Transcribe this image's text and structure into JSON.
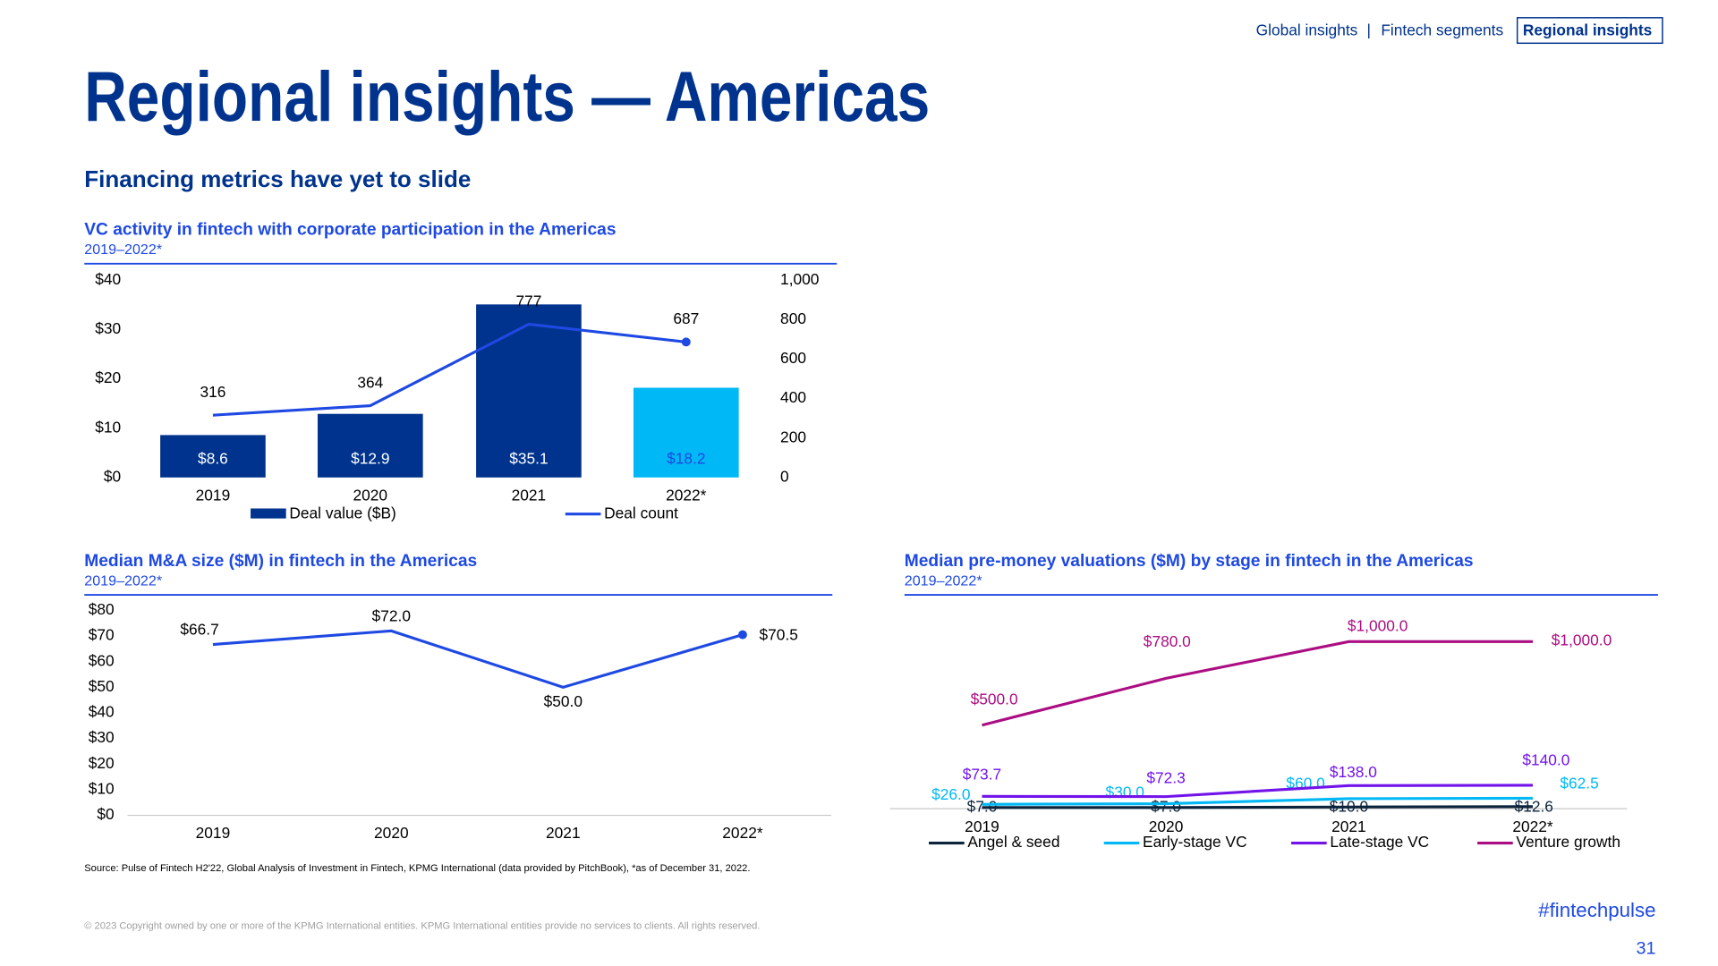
{
  "nav": [
    "Global insights",
    "Fintech segments",
    "Regional insights"
  ],
  "nav_separator": "|",
  "title": "Regional insights — Americas",
  "subtitle": "Financing metrics have yet to slide",
  "source": "Source: Pulse of Fintech H2'22, Global Analysis of Investment in Fintech, KPMG International (data provided by PitchBook), *as of December 31, 2022.",
  "copyright": "© 2023 Copyright owned by one or more of the KPMG International entities. KPMG International entities provide no services to clients. All rights reserved.",
  "hashtag": "#fintechpulse",
  "page_number": 31,
  "chart_data": [
    {
      "type": "combo",
      "title": "VC activity in fintech with corporate participation in the Americas",
      "subtitle": "2019–2022*",
      "categories": [
        "2019",
        "2020",
        "2021",
        "2022*"
      ],
      "series": [
        {
          "name": "Deal value ($B)",
          "type": "bar",
          "color": "#00338D",
          "colors": [
            "#00338D",
            "#00338D",
            "#00338D",
            "#00B8F5"
          ],
          "values": [
            8.6,
            12.9,
            35.1,
            18.2
          ],
          "value_labels": [
            "$8.6",
            "$12.9",
            "$35.1",
            "$18.2"
          ],
          "value_label_colors": [
            "#ffffff",
            "#ffffff",
            "#ffffff",
            "#1E49E2"
          ]
        },
        {
          "name": "Deal count",
          "type": "line",
          "axis": "y2",
          "color": "#1E49E2",
          "values": [
            316,
            364,
            777,
            687
          ],
          "end_marker": true
        }
      ],
      "ylim": [
        0,
        40
      ],
      "yticks": [
        {
          "value": 0,
          "label": "$0"
        },
        {
          "value": 10,
          "label": "$10"
        },
        {
          "value": 20,
          "label": "$20"
        },
        {
          "value": 30,
          "label": "$30"
        },
        {
          "value": 40,
          "label": "$40"
        }
      ],
      "y2lim": [
        0,
        1000
      ],
      "y2ticks": [
        0,
        200,
        400,
        600,
        800,
        {
          "value": 1000,
          "label": "1,000"
        }
      ]
    },
    {
      "type": "line",
      "title": "Median M&A size ($M) in fintech in the Americas",
      "subtitle": "2019–2022*",
      "categories": [
        "2019",
        "2020",
        "2021",
        "2022*"
      ],
      "values": [
        66.7,
        72.0,
        50.0,
        70.5
      ],
      "value_labels": [
        "$66.7",
        "$72.0",
        "$50.0",
        "$70.5"
      ],
      "color": "#1E49E2",
      "end_marker": true,
      "ylim": [
        0,
        80
      ],
      "yticks": [
        {
          "value": 0,
          "label": "$0"
        },
        {
          "value": 10,
          "label": "$10"
        },
        {
          "value": 20,
          "label": "$20"
        },
        {
          "value": 30,
          "label": "$30"
        },
        {
          "value": 40,
          "label": "$40"
        },
        {
          "value": 50,
          "label": "$50"
        },
        {
          "value": 60,
          "label": "$60"
        },
        {
          "value": 70,
          "label": "$70"
        },
        {
          "value": 80,
          "label": "$80"
        }
      ]
    },
    {
      "type": "line",
      "title": "Median pre-money valuations ($M) by stage in fintech in the Americas",
      "subtitle": "2019–2022*",
      "categories": [
        "2019",
        "2020",
        "2021",
        "2022*"
      ],
      "series": [
        {
          "name": "Angel & seed",
          "color": "#0C233C",
          "values": [
            7.0,
            7.0,
            10.0,
            12.6
          ],
          "value_labels": [
            "$7.0",
            "$7.0",
            "$10.0",
            "$12.6"
          ]
        },
        {
          "name": "Early-stage VC",
          "color": "#00B8F5",
          "values": [
            26.0,
            30.0,
            60.0,
            62.5
          ],
          "value_labels": [
            "$26.0",
            "$30.0",
            "$60.0",
            "$62.5"
          ]
        },
        {
          "name": "Late-stage VC",
          "color": "#7213EA",
          "values": [
            73.7,
            72.3,
            138.0,
            140.0
          ],
          "value_labels": [
            "$73.7",
            "$72.3",
            "$138.0",
            "$140.0"
          ]
        },
        {
          "name": "Venture growth",
          "color": "#AB0D82",
          "values": [
            500.0,
            780.0,
            1000.0,
            1000.0
          ],
          "value_labels": [
            "$500.0",
            "$780.0",
            "$1,000.0",
            "$1,000.0"
          ]
        }
      ],
      "ylim": [
        0,
        1200
      ]
    }
  ]
}
